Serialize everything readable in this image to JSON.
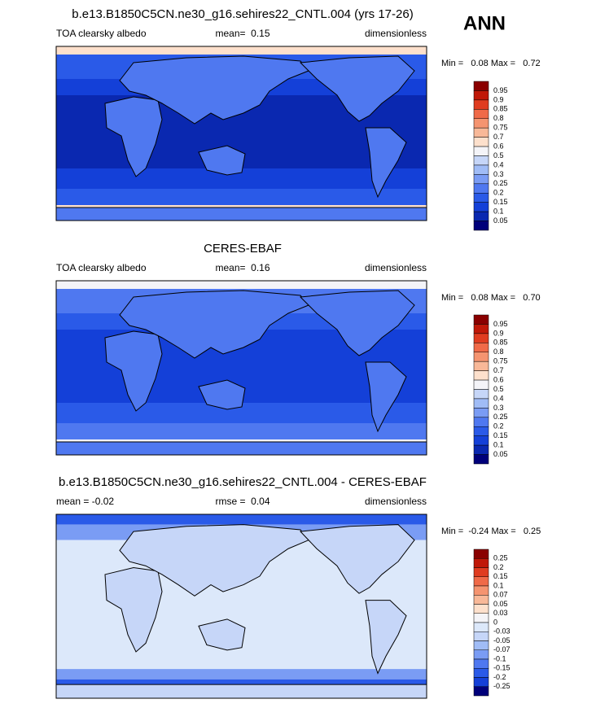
{
  "season": "ANN",
  "panels": [
    {
      "title": "b.e13.B1850C5CN.ne30_g16.sehires22_CNTL.004 (yrs 17-26)",
      "left": "TOA clearsky albedo",
      "center": "mean=  0.15",
      "right": "dimensionless",
      "minmax": "Min =   0.08 Max =   0.72",
      "colorbar": {
        "labels": [
          "0.95",
          "0.9",
          "0.85",
          "0.8",
          "0.75",
          "0.7",
          "0.6",
          "0.5",
          "0.4",
          "0.3",
          "0.25",
          "0.2",
          "0.15",
          "0.1",
          "0.05"
        ],
        "colors": [
          "#8a0000",
          "#c01808",
          "#e03c20",
          "#f06a48",
          "#f59470",
          "#f8b898",
          "#fde0cc",
          "#f4f4f8",
          "#c6d6f8",
          "#a0bcf6",
          "#7a9cf4",
          "#4f78f0",
          "#2a5ae8",
          "#1440d8",
          "#0a28b0",
          "#00007a"
        ]
      }
    },
    {
      "title": "CERES-EBAF",
      "left": "TOA clearsky albedo",
      "center": "mean=  0.16",
      "right": "dimensionless",
      "minmax": "Min =   0.08 Max =   0.70",
      "colorbar": {
        "labels": [
          "0.95",
          "0.9",
          "0.85",
          "0.8",
          "0.75",
          "0.7",
          "0.6",
          "0.5",
          "0.4",
          "0.3",
          "0.25",
          "0.2",
          "0.15",
          "0.1",
          "0.05"
        ],
        "colors": [
          "#8a0000",
          "#c01808",
          "#e03c20",
          "#f06a48",
          "#f59470",
          "#f8b898",
          "#fde0cc",
          "#f4f4f8",
          "#c6d6f8",
          "#a0bcf6",
          "#7a9cf4",
          "#4f78f0",
          "#2a5ae8",
          "#1440d8",
          "#0a28b0",
          "#00007a"
        ]
      }
    },
    {
      "title": "b.e13.B1850C5CN.ne30_g16.sehires22_CNTL.004 - CERES-EBAF",
      "left": "mean = -0.02",
      "center": "rmse =  0.04",
      "right": "dimensionless",
      "minmax": "Min =  -0.24 Max =   0.25",
      "colorbar": {
        "labels": [
          "0.25",
          "0.2",
          "0.15",
          "0.1",
          "0.07",
          "0.05",
          "0.03",
          "0",
          "-0.03",
          "-0.05",
          "-0.07",
          "-0.1",
          "-0.15",
          "-0.2",
          "-0.25"
        ],
        "colors": [
          "#8a0000",
          "#c01808",
          "#e03c20",
          "#f06a48",
          "#f59470",
          "#f8b898",
          "#fde0cc",
          "#f4f4f8",
          "#dce8fa",
          "#c6d6f8",
          "#a0bcf6",
          "#7a9cf4",
          "#4f78f0",
          "#2a5ae8",
          "#1440d8",
          "#00007a"
        ]
      }
    }
  ]
}
